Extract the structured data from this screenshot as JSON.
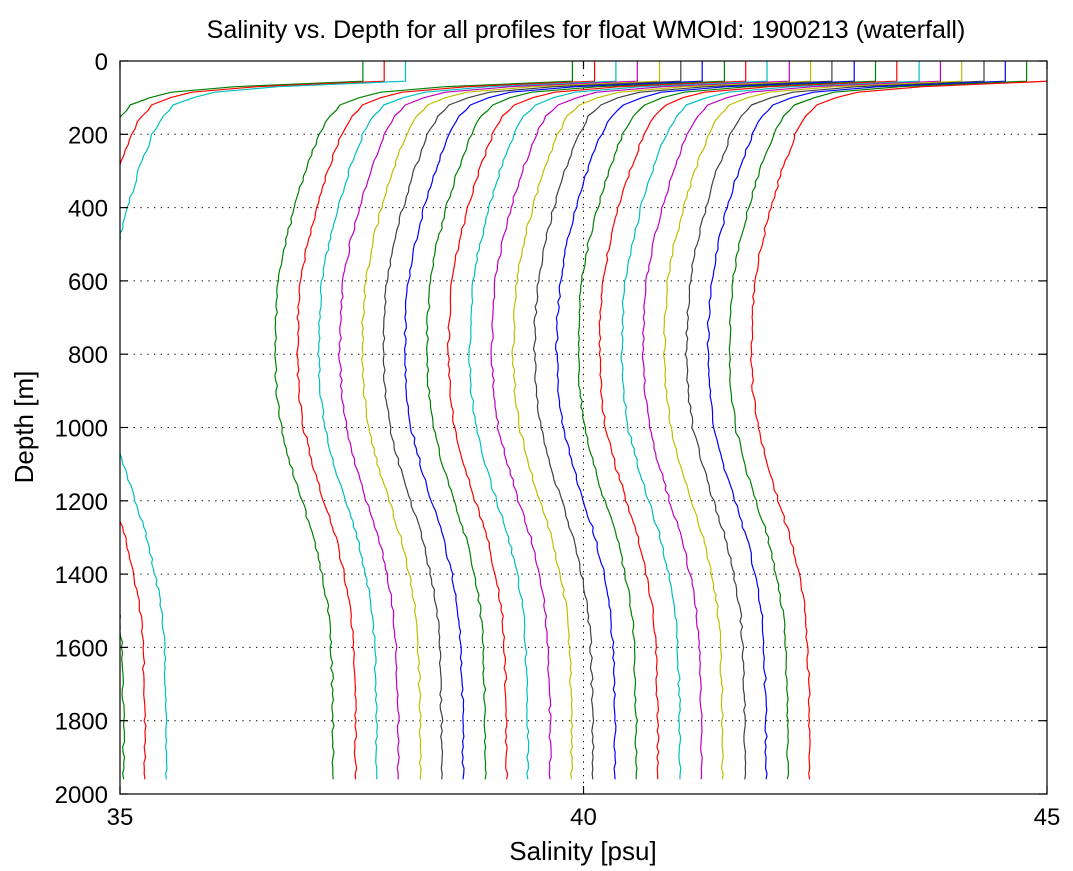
{
  "chart_data": {
    "type": "line",
    "title": "Salinity vs. Depth for all profiles for float WMOId: 1900213 (waterfall)",
    "xlabel": "Salinity [psu]",
    "ylabel": "Depth [m]",
    "xlim": [
      35,
      45
    ],
    "ylim": [
      0,
      2000
    ],
    "y_reversed": true,
    "x_ticks": [
      "35",
      "40",
      "45"
    ],
    "y_ticks": [
      "0",
      "200",
      "400",
      "600",
      "800",
      "1000",
      "1200",
      "1400",
      "1600",
      "1800",
      "2000"
    ],
    "grid": "dotted",
    "legend": "none",
    "series_colors": [
      "#008000",
      "#ff0000",
      "#00bfbf",
      "#bf00bf",
      "#bfbf00",
      "#404040",
      "#0000ff"
    ],
    "profile_shape": {
      "depth": [
        0,
        55,
        70,
        85,
        100,
        120,
        150,
        200,
        300,
        400,
        500,
        600,
        700,
        800,
        900,
        1000,
        1100,
        1200,
        1300,
        1400,
        1500,
        1600,
        1700,
        1800,
        1900,
        1960
      ],
      "salinity_offset": [
        0,
        0,
        -1.37,
        -2.07,
        -2.3,
        -2.5,
        -2.62,
        -2.73,
        -2.88,
        -3.0,
        -3.1,
        -3.17,
        -3.2,
        -3.21,
        -3.19,
        -3.14,
        -3.04,
        -2.92,
        -2.79,
        -2.7,
        -2.63,
        -2.6,
        -2.59,
        -2.58,
        -2.58,
        -2.58
      ]
    },
    "series": [
      {
        "color": "#008000",
        "surface_salinity": 37.62
      },
      {
        "color": "#ff0000",
        "surface_salinity": 37.85
      },
      {
        "color": "#00bfbf",
        "surface_salinity": 38.08
      },
      {
        "color": "#008000",
        "surface_salinity": 39.88
      },
      {
        "color": "#ff0000",
        "surface_salinity": 40.12
      },
      {
        "color": "#00bfbf",
        "surface_salinity": 40.35
      },
      {
        "color": "#bf00bf",
        "surface_salinity": 40.58
      },
      {
        "color": "#bfbf00",
        "surface_salinity": 40.82
      },
      {
        "color": "#404040",
        "surface_salinity": 41.05
      },
      {
        "color": "#0000ff",
        "surface_salinity": 41.28
      },
      {
        "color": "#008000",
        "surface_salinity": 41.52
      },
      {
        "color": "#ff0000",
        "surface_salinity": 41.75
      },
      {
        "color": "#00bfbf",
        "surface_salinity": 41.98
      },
      {
        "color": "#bf00bf",
        "surface_salinity": 42.22
      },
      {
        "color": "#bfbf00",
        "surface_salinity": 42.45
      },
      {
        "color": "#404040",
        "surface_salinity": 42.68
      },
      {
        "color": "#0000ff",
        "surface_salinity": 42.92
      },
      {
        "color": "#008000",
        "surface_salinity": 43.15
      },
      {
        "color": "#ff0000",
        "surface_salinity": 43.38
      },
      {
        "color": "#00bfbf",
        "surface_salinity": 43.62
      },
      {
        "color": "#bf00bf",
        "surface_salinity": 43.85
      },
      {
        "color": "#bfbf00",
        "surface_salinity": 44.08
      },
      {
        "color": "#404040",
        "surface_salinity": 44.32
      },
      {
        "color": "#0000ff",
        "surface_salinity": 44.55
      },
      {
        "color": "#008000",
        "surface_salinity": 44.78
      },
      {
        "color": "#ff0000",
        "surface_salinity": 45.02
      }
    ]
  }
}
